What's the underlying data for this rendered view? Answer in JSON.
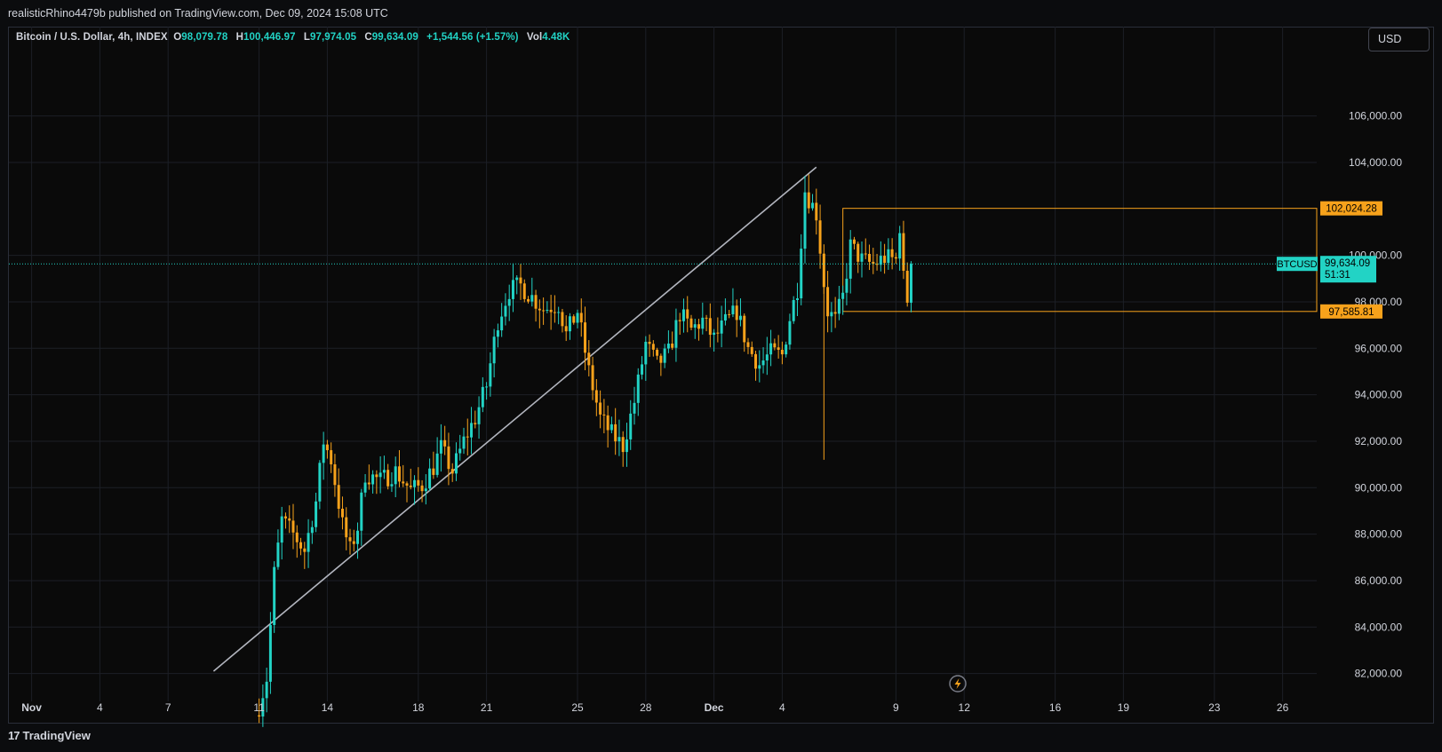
{
  "header": {
    "publisher_line": "realisticRhino4479b published on TradingView.com, Dec 09, 2024 15:08 UTC"
  },
  "legend": {
    "symbol_desc": "Bitcoin / U.S. Dollar, 4h, INDEX",
    "o_label": "O",
    "o_value": "98,079.78",
    "h_label": "H",
    "h_value": "100,446.97",
    "l_label": "L",
    "l_value": "97,974.05",
    "c_label": "C",
    "c_value": "99,634.09",
    "change": "+1,544.56 (+1.57%)",
    "vol_label": "Vol",
    "vol_value": "4.48K"
  },
  "currency_button": "USD",
  "footer": {
    "logo_glyph": "17",
    "brand": "TradingView"
  },
  "colors": {
    "up": "#22d3c5",
    "down": "#f7a21b",
    "trendline": "#b2b5be",
    "zone": "#f7a21b",
    "bg": "#0a0a0a",
    "grid": "#1c1f26",
    "axis_text": "#d1d4dc"
  },
  "chart_data": {
    "type": "candlestick",
    "symbol": "BTCUSD",
    "timeframe": "4h",
    "y_axis": {
      "ticks": [
        82000,
        84000,
        86000,
        88000,
        90000,
        92000,
        94000,
        96000,
        98000,
        100000,
        104000,
        106000
      ],
      "tick_labels": [
        "82,000.00",
        "84,000.00",
        "86,000.00",
        "88,000.00",
        "90,000.00",
        "92,000.00",
        "94,000.00",
        "96,000.00",
        "98,000.00",
        "100,000.00",
        "104,000.00",
        "106,000.00"
      ],
      "range": [
        80800,
        108700
      ]
    },
    "x_axis": {
      "ticks": [
        {
          "date": "2024-11-01",
          "label": "Nov"
        },
        {
          "date": "2024-11-04",
          "label": "4"
        },
        {
          "date": "2024-11-07",
          "label": "7"
        },
        {
          "date": "2024-11-11",
          "label": "11"
        },
        {
          "date": "2024-11-14",
          "label": "14"
        },
        {
          "date": "2024-11-18",
          "label": "18"
        },
        {
          "date": "2024-11-21",
          "label": "21"
        },
        {
          "date": "2024-11-25",
          "label": "25"
        },
        {
          "date": "2024-11-28",
          "label": "28"
        },
        {
          "date": "2024-12-01",
          "label": "Dec"
        },
        {
          "date": "2024-12-04",
          "label": "4"
        },
        {
          "date": "2024-12-09",
          "label": "9"
        },
        {
          "date": "2024-12-12",
          "label": "12"
        },
        {
          "date": "2024-12-16",
          "label": "16"
        },
        {
          "date": "2024-12-19",
          "label": "19"
        },
        {
          "date": "2024-12-23",
          "label": "23"
        },
        {
          "date": "2024-12-26",
          "label": "26"
        }
      ],
      "range": [
        "2024-10-31T00:00",
        "2024-12-27T12:00"
      ]
    },
    "anchors": [
      [
        "2024-11-11T00:00",
        80600
      ],
      [
        "2024-11-11T08:00",
        81800
      ],
      [
        "2024-11-11T16:00",
        86300
      ],
      [
        "2024-11-12T00:00",
        88600
      ],
      [
        "2024-11-12T12:00",
        88000
      ],
      [
        "2024-11-13T00:00",
        87300
      ],
      [
        "2024-11-13T12:00",
        89400
      ],
      [
        "2024-11-13T20:00",
        92000
      ],
      [
        "2024-11-14T04:00",
        91200
      ],
      [
        "2024-11-14T16:00",
        88400
      ],
      [
        "2024-11-15T00:00",
        87300
      ],
      [
        "2024-11-15T08:00",
        88300
      ],
      [
        "2024-11-15T16:00",
        90600
      ],
      [
        "2024-11-16T08:00",
        90300
      ],
      [
        "2024-11-17T00:00",
        90700
      ],
      [
        "2024-11-17T16:00",
        89900
      ],
      [
        "2024-11-18T04:00",
        90100
      ],
      [
        "2024-11-18T16:00",
        90900
      ],
      [
        "2024-11-19T00:00",
        91700
      ],
      [
        "2024-11-19T12:00",
        90700
      ],
      [
        "2024-11-20T00:00",
        92000
      ],
      [
        "2024-11-20T12:00",
        93000
      ],
      [
        "2024-11-21T00:00",
        94400
      ],
      [
        "2024-11-21T12:00",
        97200
      ],
      [
        "2024-11-22T00:00",
        98500
      ],
      [
        "2024-11-22T12:00",
        98700
      ],
      [
        "2024-11-23T00:00",
        98200
      ],
      [
        "2024-11-23T12:00",
        97700
      ],
      [
        "2024-11-24T04:00",
        97900
      ],
      [
        "2024-11-24T12:00",
        96600
      ],
      [
        "2024-11-25T00:00",
        97600
      ],
      [
        "2024-11-25T12:00",
        95000
      ],
      [
        "2024-11-26T00:00",
        93000
      ],
      [
        "2024-11-26T12:00",
        92300
      ],
      [
        "2024-11-27T00:00",
        91800
      ],
      [
        "2024-11-27T12:00",
        93700
      ],
      [
        "2024-11-28T00:00",
        96200
      ],
      [
        "2024-11-28T12:00",
        95300
      ],
      [
        "2024-11-29T00:00",
        95800
      ],
      [
        "2024-11-29T12:00",
        97500
      ],
      [
        "2024-11-30T00:00",
        96800
      ],
      [
        "2024-11-30T12:00",
        97200
      ],
      [
        "2024-12-01T00:00",
        96400
      ],
      [
        "2024-12-01T12:00",
        97100
      ],
      [
        "2024-12-02T00:00",
        97600
      ],
      [
        "2024-12-02T12:00",
        96000
      ],
      [
        "2024-12-03T00:00",
        95300
      ],
      [
        "2024-12-03T12:00",
        95800
      ],
      [
        "2024-12-04T00:00",
        95700
      ],
      [
        "2024-12-04T08:00",
        97300
      ],
      [
        "2024-12-04T16:00",
        98600
      ],
      [
        "2024-12-05T00:00",
        102800
      ],
      [
        "2024-12-05T12:00",
        101800
      ],
      [
        "2024-12-05T20:00",
        98800
      ],
      [
        "2024-12-06T00:00",
        97600
      ],
      [
        "2024-12-06T08:00",
        97200
      ],
      [
        "2024-12-06T16:00",
        98200
      ],
      [
        "2024-12-07T00:00",
        100400
      ],
      [
        "2024-12-07T12:00",
        99800
      ],
      [
        "2024-12-08T00:00",
        99600
      ],
      [
        "2024-12-08T12:00",
        99900
      ],
      [
        "2024-12-09T00:00",
        99800
      ],
      [
        "2024-12-09T04:00",
        101300
      ],
      [
        "2024-12-09T08:00",
        99000
      ],
      [
        "2024-12-09T12:00",
        98100
      ],
      [
        "2024-12-09T16:00",
        99634
      ]
    ],
    "last_price": {
      "value": 99634.09,
      "symbol_label": "BTCUSD",
      "value_label": "99,634.09",
      "countdown": "51:31"
    },
    "zone": {
      "top": 102024.28,
      "bottom": 97585.81,
      "top_label": "102,024.28",
      "bottom_label": "97,585.81",
      "start": "2024-12-06T16:00",
      "end": "2024-12-27T12:00"
    },
    "trendline": {
      "from": {
        "date": "2024-11-09T00:00",
        "value": 82100
      },
      "to": {
        "date": "2024-12-05T12:00",
        "value": 103800
      }
    }
  }
}
